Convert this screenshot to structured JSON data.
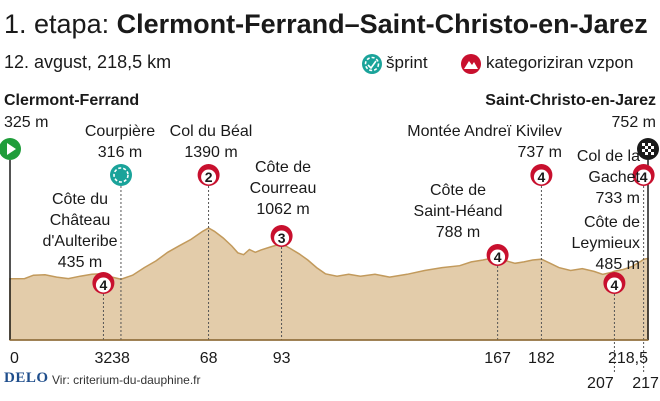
{
  "header": {
    "title_prefix": "1. etapa:",
    "title_route": "Clermont-Ferrand–Saint-Christo-en-Jarez",
    "subtitle": "12. avgust, 218,5 km"
  },
  "legend": {
    "sprint_label": "šprint",
    "climb_label": "kategoriziran vzpon"
  },
  "start": {
    "name": "Clermont-Ferrand",
    "elevation": "325 m"
  },
  "finish": {
    "name": "Saint-Christo-en-Jarez",
    "elevation": "752 m"
  },
  "points": {
    "courpiere": {
      "line1": "Courpière",
      "line2": "316 m"
    },
    "beal": {
      "line1": "Col du Béal",
      "line2": "1390 m"
    },
    "aulteribe": {
      "line1": "Côte du",
      "line2": "Château",
      "line3": "d'Aulteribe",
      "line4": "435 m"
    },
    "courreau": {
      "line1": "Côte de",
      "line2": "Courreau",
      "line3": "1062 m"
    },
    "kivilev": {
      "line1": "Montée Andreï Kivilev",
      "line2": "737 m"
    },
    "heand": {
      "line1": "Côte de",
      "line2": "Saint-Héand",
      "line3": "788 m"
    },
    "gachet": {
      "line1": "Col de la",
      "line2": "Gachet",
      "line3": "733 m"
    },
    "leymieux": {
      "line1": "Côte de",
      "line2": "Leymieux",
      "line3": "485 m"
    }
  },
  "source": {
    "logo": "DELO",
    "text": "Vir: criterium-du-dauphine.fr"
  },
  "colors": {
    "profile_fill": "#e3ccaa",
    "profile_stroke": "#c29a5c",
    "climb_red": "#c8102e",
    "sprint_teal": "#1aa39a",
    "start_green": "#1f9d3a"
  },
  "chart_data": {
    "type": "area",
    "xlabel": "",
    "ylabel": "",
    "xlim": [
      0,
      218.5
    ],
    "x_ticks": [
      "0",
      "32",
      "38",
      "68",
      "93",
      "167",
      "182",
      "207",
      "217",
      "218,5"
    ],
    "markers": [
      {
        "km": 0,
        "type": "start",
        "elevation_m": 325
      },
      {
        "km": 32,
        "type": "climb",
        "category": "4",
        "elevation_m": 435
      },
      {
        "km": 38,
        "type": "sprint",
        "elevation_m": 316
      },
      {
        "km": 68,
        "type": "climb",
        "category": "2",
        "elevation_m": 1390
      },
      {
        "km": 93,
        "type": "climb",
        "category": "3",
        "elevation_m": 1062
      },
      {
        "km": 167,
        "type": "climb",
        "category": "4",
        "elevation_m": 788
      },
      {
        "km": 182,
        "type": "climb",
        "category": "4",
        "elevation_m": 737
      },
      {
        "km": 207,
        "type": "climb",
        "category": "4",
        "elevation_m": 485
      },
      {
        "km": 217,
        "type": "climb",
        "category": "4",
        "elevation_m": 733
      },
      {
        "km": 218.5,
        "type": "finish",
        "elevation_m": 752
      }
    ],
    "profile": [
      [
        0,
        325
      ],
      [
        5,
        330
      ],
      [
        8,
        400
      ],
      [
        12,
        410
      ],
      [
        16,
        360
      ],
      [
        20,
        330
      ],
      [
        24,
        380
      ],
      [
        28,
        420
      ],
      [
        32,
        435
      ],
      [
        35,
        360
      ],
      [
        38,
        316
      ],
      [
        42,
        400
      ],
      [
        46,
        560
      ],
      [
        50,
        700
      ],
      [
        54,
        880
      ],
      [
        58,
        1020
      ],
      [
        62,
        1150
      ],
      [
        66,
        1320
      ],
      [
        68,
        1390
      ],
      [
        70,
        1320
      ],
      [
        73,
        1180
      ],
      [
        76,
        1010
      ],
      [
        78,
        870
      ],
      [
        80,
        830
      ],
      [
        82,
        940
      ],
      [
        84,
        880
      ],
      [
        86,
        930
      ],
      [
        89,
        990
      ],
      [
        93,
        1062
      ],
      [
        96,
        960
      ],
      [
        99,
        850
      ],
      [
        102,
        720
      ],
      [
        105,
        560
      ],
      [
        108,
        430
      ],
      [
        112,
        380
      ],
      [
        116,
        420
      ],
      [
        120,
        380
      ],
      [
        125,
        420
      ],
      [
        130,
        360
      ],
      [
        136,
        420
      ],
      [
        142,
        500
      ],
      [
        148,
        560
      ],
      [
        154,
        600
      ],
      [
        158,
        680
      ],
      [
        162,
        720
      ],
      [
        165,
        760
      ],
      [
        167,
        788
      ],
      [
        170,
        700
      ],
      [
        173,
        650
      ],
      [
        176,
        680
      ],
      [
        179,
        720
      ],
      [
        182,
        737
      ],
      [
        185,
        650
      ],
      [
        188,
        560
      ],
      [
        192,
        500
      ],
      [
        196,
        540
      ],
      [
        200,
        480
      ],
      [
        203,
        420
      ],
      [
        206,
        460
      ],
      [
        207,
        485
      ],
      [
        210,
        520
      ],
      [
        213,
        580
      ],
      [
        216,
        690
      ],
      [
        217,
        733
      ],
      [
        218.5,
        752
      ]
    ]
  }
}
